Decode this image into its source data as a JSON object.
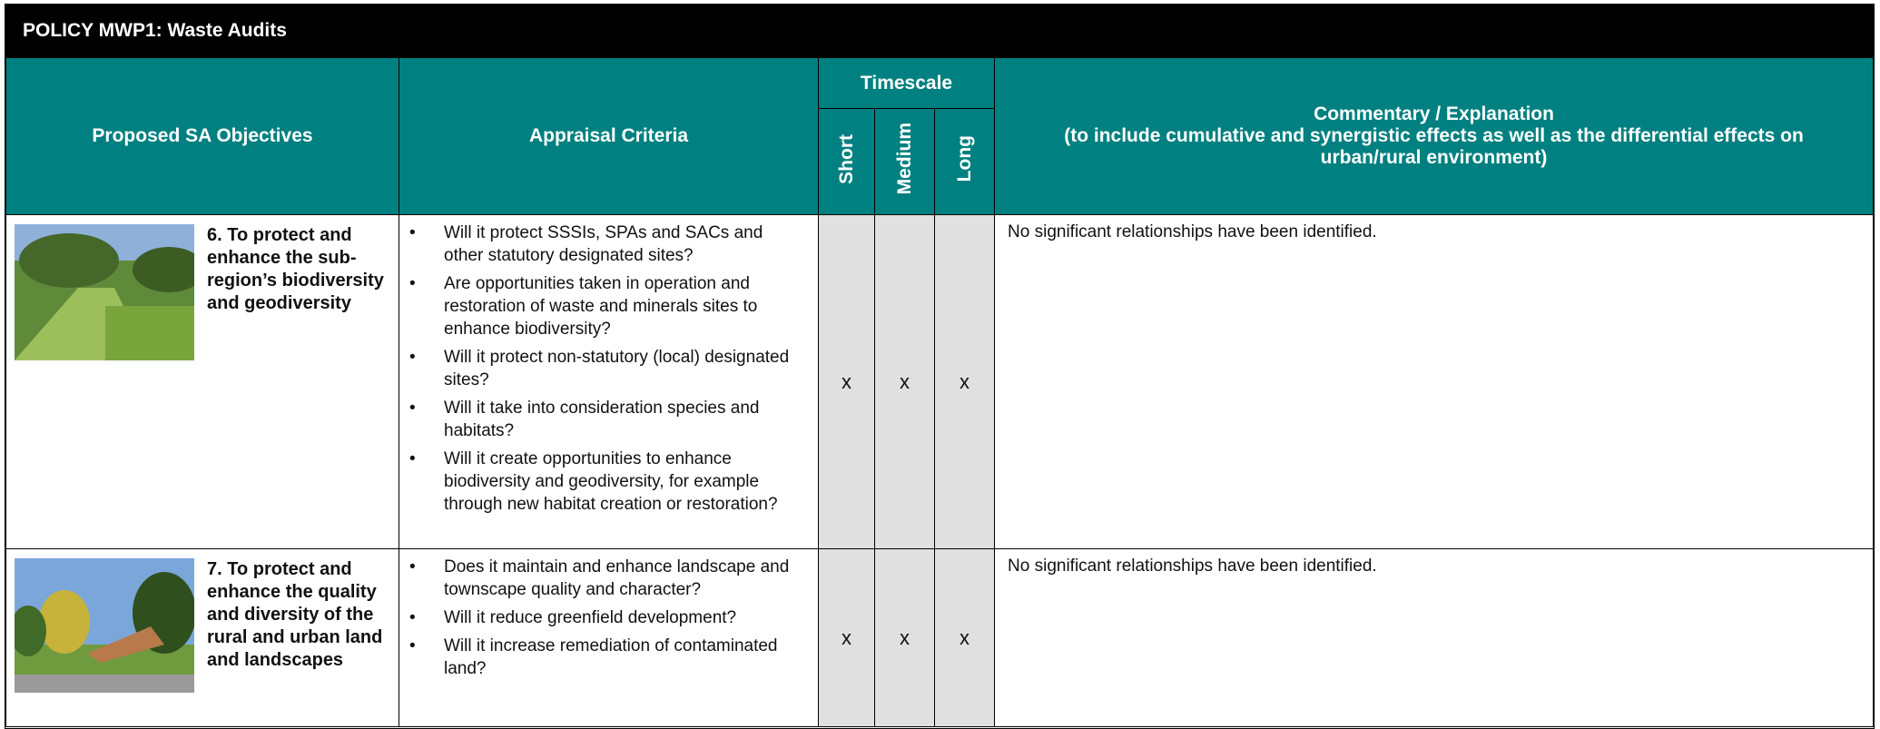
{
  "header": {
    "title": "POLICY MWP1: Waste Audits"
  },
  "table": {
    "columns": {
      "objectives": "Proposed SA Objectives",
      "criteria": "Appraisal Criteria",
      "timescale": "Timescale",
      "commentary": "Commentary / Explanation",
      "commentary_note": "(to include cumulative and synergistic effects as well as the differential effects on urban/rural environment)"
    },
    "timescale": [
      "Short",
      "Medium",
      "Long"
    ],
    "rows": [
      {
        "objective": "6. To protect and enhance the sub-region’s biodiversity and geodiversity",
        "criteria": [
          "Will it protect SSSIs, SPAs and SACs and other statutory designated sites?",
          "Are opportunities taken in operation and restoration of waste and minerals sites to enhance biodiversity?",
          "Will it protect non-statutory (local) designated sites?",
          "Will it take into consideration species and habitats?",
          "Will it create opportunities to enhance biodiversity and geodiversity, for example through new habitat creation or restoration?"
        ],
        "timescale": [
          "x",
          "x",
          "x"
        ],
        "commentary": "No significant relationships have been identified."
      },
      {
        "objective": "7. To protect and enhance the quality and diversity of the rural and urban land and landscapes",
        "criteria": [
          "Does it maintain and enhance landscape and townscape quality and character?",
          "Will it reduce greenfield development?",
          "Will it increase remediation of contaminated land?"
        ],
        "timescale": [
          "x",
          "x",
          "x"
        ],
        "commentary": "No significant relationships have been identified."
      }
    ]
  }
}
